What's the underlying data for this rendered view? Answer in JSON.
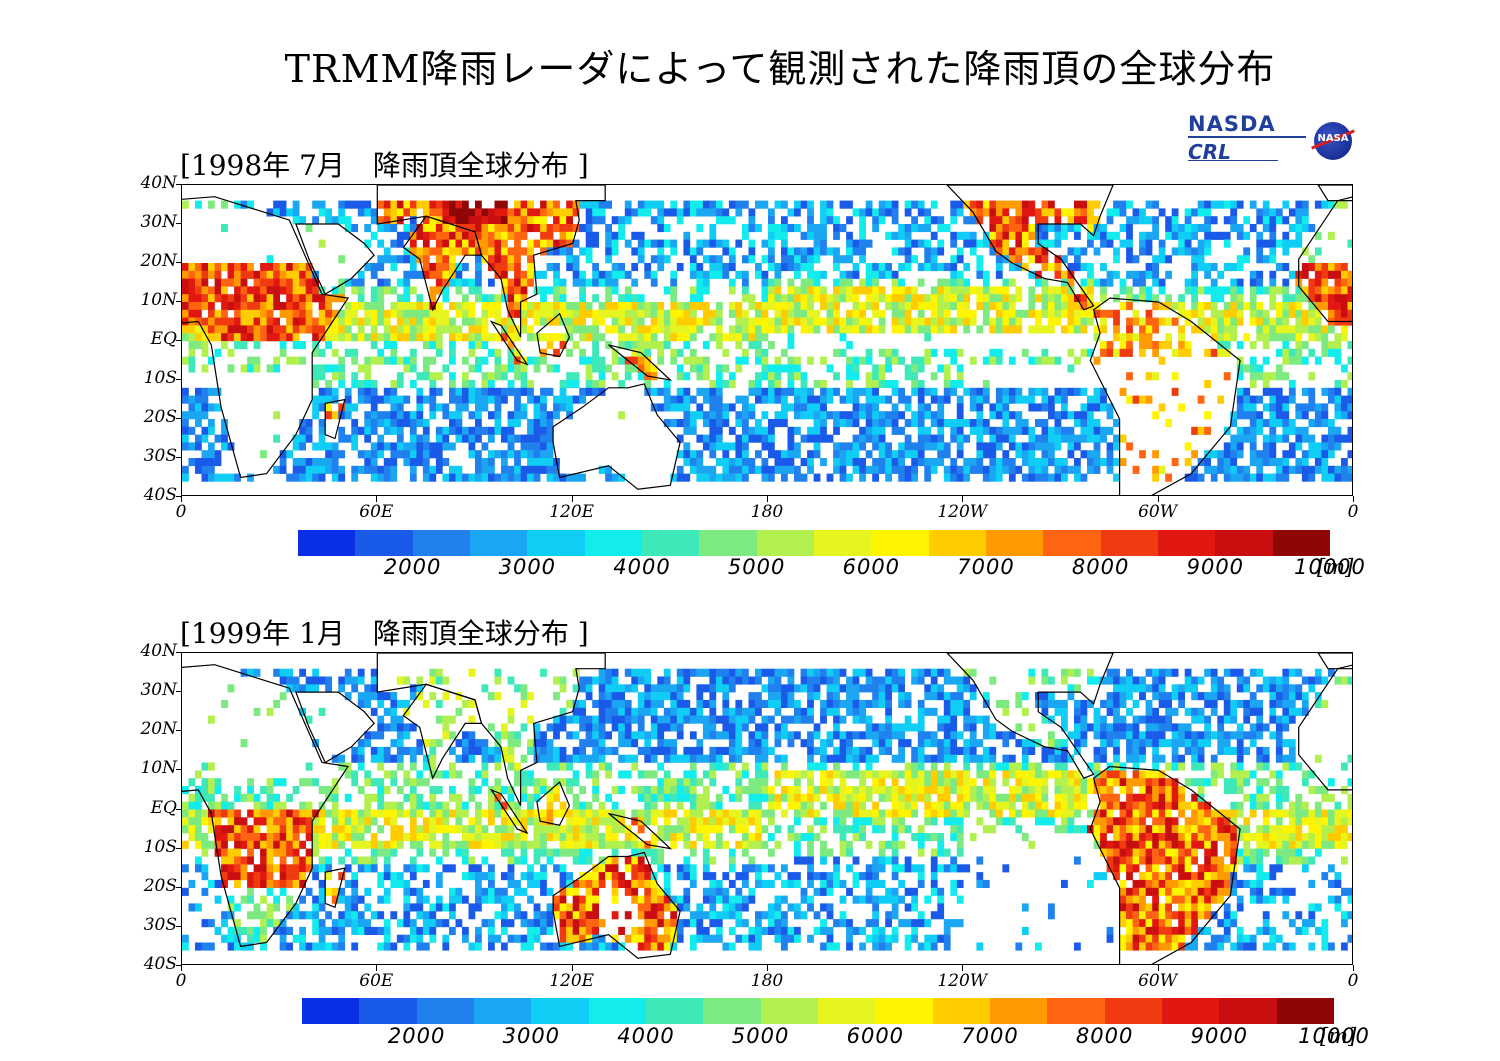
{
  "title": "TRMM降雨レーダによって観測された降雨頂の全球分布",
  "logos": {
    "nasda": "NASDA",
    "crl": "CRL",
    "nasa": "NASA"
  },
  "panels": [
    {
      "title": "[1998年 7月　降雨頂全球分布 ]",
      "season": "jul",
      "lat_labels": [
        "40N",
        "30N",
        "20N",
        "10N",
        "EQ",
        "10S",
        "20S",
        "30S",
        "40S"
      ],
      "lon_labels": [
        "0",
        "60E",
        "120E",
        "180",
        "120W",
        "60W",
        "0"
      ]
    },
    {
      "title": "[1999年 1月　降雨頂全球分布 ]",
      "season": "jan",
      "lat_labels": [
        "40N",
        "30N",
        "20N",
        "10N",
        "EQ",
        "10S",
        "20S",
        "30S",
        "40S"
      ],
      "lon_labels": [
        "0",
        "60E",
        "120E",
        "180",
        "120W",
        "60W",
        "0"
      ]
    }
  ],
  "colorbar": {
    "unit": "[m]",
    "labels": [
      "2000",
      "3000",
      "4000",
      "5000",
      "6000",
      "7000",
      "8000",
      "9000",
      "10000"
    ],
    "colors": [
      "#0a2ee6",
      "#1a5ae8",
      "#1f80ee",
      "#1aa6f2",
      "#10cdf5",
      "#12ecec",
      "#3ee8b8",
      "#7cea80",
      "#b2f050",
      "#e6f520",
      "#fff500",
      "#ffcc00",
      "#ff9a00",
      "#ff6410",
      "#f03a10",
      "#e01810",
      "#c80e0e",
      "#8e0606"
    ]
  },
  "map": {
    "lat_range": [
      -40,
      40
    ],
    "lon_range": [
      0,
      360
    ],
    "data_lat_range": [
      -36,
      36
    ]
  }
}
